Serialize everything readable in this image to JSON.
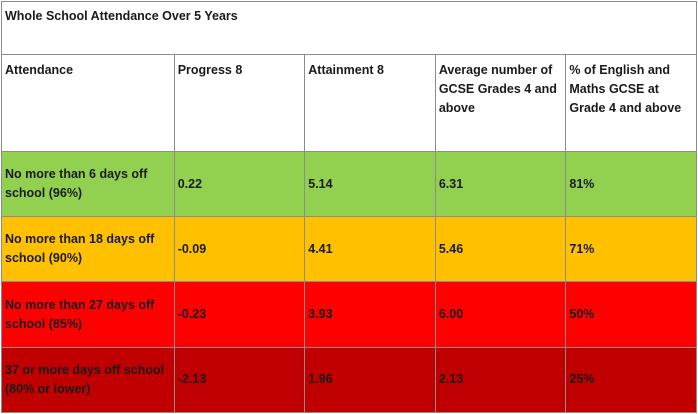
{
  "title": "Whole School Attendance Over 5 Years",
  "headers": [
    "Attendance",
    "Progress 8",
    "Attainment 8",
    "Average number of GCSE Grades 4 and above",
    "% of English and Maths GCSE at Grade 4 and above"
  ],
  "rows": [
    {
      "attendance": "No more than 6 days off school (96%)",
      "progress8": "0.22",
      "attainment8": "5.14",
      "avg_grades": "6.31",
      "eng_maths": "81%",
      "color": "#92d050"
    },
    {
      "attendance": "No more than 18 days off school (90%)",
      "progress8": "-0.09",
      "attainment8": "4.41",
      "avg_grades": "5.46",
      "eng_maths": "71%",
      "color": "#ffc000"
    },
    {
      "attendance": "No more than 27 days off school (85%)",
      "progress8": "-0.23",
      "attainment8": "3.93",
      "avg_grades": "6.00",
      "eng_maths": "50%",
      "color": "#ff0000"
    },
    {
      "attendance": "37 or more days off school (80% or lower)",
      "progress8": "-2.13",
      "attainment8": "1.96",
      "avg_grades": "2.13",
      "eng_maths": "25%",
      "color": "#c00000"
    }
  ]
}
